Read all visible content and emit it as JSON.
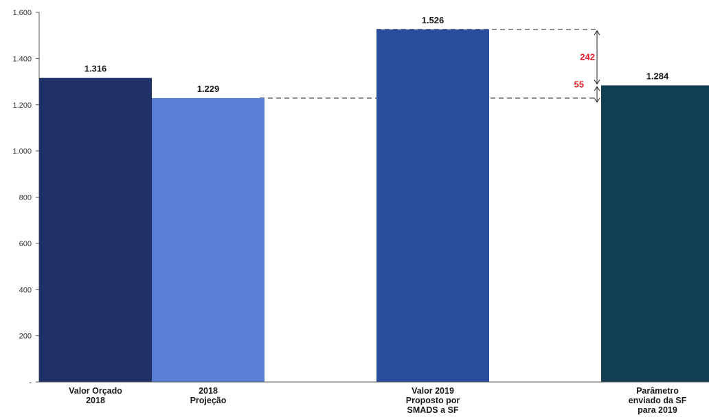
{
  "chart_data": {
    "type": "bar",
    "categories": [
      [
        "Valor Orçado",
        "2018"
      ],
      [
        "2018",
        "Projeção"
      ],
      [
        "Valor 2019",
        "Proposto por",
        "SMADS a SF"
      ],
      [
        "Parâmetro",
        "enviado da SF",
        "para 2019"
      ]
    ],
    "values": [
      1316,
      1229,
      1526,
      1284
    ],
    "value_labels": [
      "1.316",
      "1.229",
      "1.526",
      "1.284"
    ],
    "colors": [
      "#1f3166",
      "#5a7dd6",
      "#2a4c9c",
      "#123e52"
    ],
    "ylim": [
      0,
      1600
    ],
    "yticks": [
      {
        "value": 0,
        "label": "-"
      },
      {
        "value": 200,
        "label": "200"
      },
      {
        "value": 400,
        "label": "400"
      },
      {
        "value": 600,
        "label": "600"
      },
      {
        "value": 800,
        "label": "800"
      },
      {
        "value": 1000,
        "label": "1.000"
      },
      {
        "value": 1200,
        "label": "1.200"
      },
      {
        "value": 1400,
        "label": "1.400"
      },
      {
        "value": 1600,
        "label": "1.600"
      }
    ],
    "grid": false,
    "annotations": [
      {
        "label": "242",
        "from": 1526,
        "to": 1284,
        "color": "#e0202a"
      },
      {
        "label": "55",
        "from": 1284,
        "to": 1229,
        "color": "#e0202a"
      }
    ],
    "title": "",
    "xlabel": "",
    "ylabel": ""
  }
}
